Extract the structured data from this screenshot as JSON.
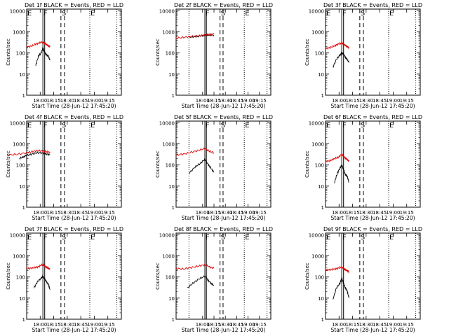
{
  "figure": {
    "ylabel": "Counts/sec",
    "xlabel": "Start Time (28-Jun-12 17:45:20)",
    "y_tick_labels": [
      "1",
      "10",
      "100",
      "1000",
      "10000"
    ],
    "x_tick_labels": [
      "18:00",
      "18:15",
      "18:30",
      "18:45",
      "19:00",
      "19:15"
    ]
  },
  "chart_data": [
    {
      "type": "line",
      "title": "Det 1f BLACK = Events, RED = LLD",
      "xlabel": "Start Time (28-Jun-12 17:45:20)",
      "ylabel": "Counts/sec",
      "y_scale": "log",
      "ylim": [
        1,
        12000
      ],
      "x_range_min": [
        0,
        105
      ],
      "event_lines": [
        {
          "label": "E",
          "t": 0,
          "style": "dotted"
        },
        {
          "label": "F",
          "t": 18,
          "style": "solid"
        },
        {
          "label": "",
          "t": 20,
          "style": "solid"
        },
        {
          "label": "S",
          "t": 38,
          "style": "dashed"
        },
        {
          "label": "",
          "t": 42,
          "style": "dashed"
        },
        {
          "label": "E",
          "t": 70,
          "style": "dotted"
        },
        {
          "label": "",
          "t": 100,
          "style": "dotted"
        }
      ],
      "series": [
        {
          "name": "Events",
          "color": "#000000",
          "x": [
            10,
            13,
            16,
            18,
            20,
            22,
            24,
            26
          ],
          "y": [
            25,
            70,
            100,
            170,
            110,
            80,
            70,
            45
          ]
        },
        {
          "name": "LLD",
          "color": "#dd0000",
          "x": [
            0,
            5,
            10,
            14,
            18,
            20,
            22,
            24,
            26
          ],
          "y": [
            190,
            210,
            260,
            300,
            330,
            290,
            250,
            220,
            190
          ]
        }
      ]
    },
    {
      "type": "line",
      "title": "Det 2f BLACK = Events, RED = LLD",
      "xlabel": "Start Time (28-Jun-12 17:45:20)",
      "ylabel": "Counts/sec",
      "y_scale": "log",
      "ylim": [
        1,
        12000
      ],
      "x_range_min": [
        -20,
        105
      ],
      "event_lines": [
        {
          "label": "",
          "t": -3,
          "style": "dotted"
        },
        {
          "label": "F",
          "t": 18,
          "style": "solid"
        },
        {
          "label": "",
          "t": 20,
          "style": "solid"
        },
        {
          "label": "S",
          "t": 38,
          "style": "dashed"
        },
        {
          "label": "",
          "t": 42,
          "style": "dashed"
        },
        {
          "label": "E",
          "t": 70,
          "style": "dotted"
        },
        {
          "label": "",
          "t": 100,
          "style": "dotted"
        }
      ],
      "series": [
        {
          "name": "Events",
          "color": "#000000",
          "x": [
            -3,
            5,
            12,
            18,
            24,
            30
          ],
          "y": [
            550,
            600,
            640,
            700,
            720,
            700
          ]
        },
        {
          "name": "LLD",
          "color": "#dd0000",
          "x": [
            -20,
            -10,
            0,
            10,
            18,
            24,
            30
          ],
          "y": [
            500,
            550,
            600,
            650,
            700,
            750,
            780
          ]
        }
      ]
    },
    {
      "type": "line",
      "title": "Det 3f BLACK = Events, RED = LLD",
      "xlabel": "Start Time (28-Jun-12 17:45:20)",
      "ylabel": "Counts/sec",
      "y_scale": "log",
      "ylim": [
        1,
        12000
      ],
      "x_range_min": [
        0,
        105
      ],
      "event_lines": [
        {
          "label": "E",
          "t": 0,
          "style": "dotted"
        },
        {
          "label": "F",
          "t": 18,
          "style": "solid"
        },
        {
          "label": "",
          "t": 20,
          "style": "solid"
        },
        {
          "label": "S",
          "t": 38,
          "style": "dashed"
        },
        {
          "label": "",
          "t": 42,
          "style": "dashed"
        },
        {
          "label": "E",
          "t": 70,
          "style": "dotted"
        },
        {
          "label": "",
          "t": 100,
          "style": "dotted"
        }
      ],
      "series": [
        {
          "name": "Events",
          "color": "#000000",
          "x": [
            8,
            12,
            16,
            18,
            20,
            22,
            24,
            26
          ],
          "y": [
            20,
            50,
            80,
            100,
            90,
            60,
            50,
            35
          ]
        },
        {
          "name": "LLD",
          "color": "#dd0000",
          "x": [
            0,
            5,
            10,
            14,
            18,
            20,
            22,
            24,
            26
          ],
          "y": [
            160,
            180,
            220,
            260,
            300,
            260,
            230,
            200,
            180
          ]
        }
      ]
    },
    {
      "type": "line",
      "title": "Det 4f BLACK = Events, RED = LLD",
      "xlabel": "Start Time (28-Jun-12 17:45:20)",
      "ylabel": "Counts/sec",
      "y_scale": "log",
      "ylim": [
        1,
        12000
      ],
      "x_range_min": [
        0,
        105
      ],
      "event_lines": [
        {
          "label": "E",
          "t": 0,
          "style": "dotted"
        },
        {
          "label": "F",
          "t": 18,
          "style": "solid"
        },
        {
          "label": "",
          "t": 20,
          "style": "solid"
        },
        {
          "label": "S",
          "t": 38,
          "style": "dashed"
        },
        {
          "label": "",
          "t": 42,
          "style": "dashed"
        },
        {
          "label": "E",
          "t": 70,
          "style": "dotted"
        },
        {
          "label": "",
          "t": 100,
          "style": "dotted"
        }
      ],
      "series": [
        {
          "name": "Events",
          "color": "#000000",
          "x": [
            -8,
            -4,
            0,
            6,
            12,
            18,
            22,
            26
          ],
          "y": [
            200,
            240,
            280,
            330,
            380,
            370,
            330,
            300
          ]
        },
        {
          "name": "LLD",
          "color": "#dd0000",
          "x": [
            -20,
            -10,
            0,
            6,
            12,
            18,
            22,
            26
          ],
          "y": [
            300,
            320,
            380,
            430,
            480,
            460,
            420,
            400
          ]
        }
      ]
    },
    {
      "type": "line",
      "title": "Det 5f BLACK = Events, RED = LLD",
      "xlabel": "Start Time (28-Jun-12 17:45:20)",
      "ylabel": "Counts/sec",
      "y_scale": "log",
      "ylim": [
        1,
        12000
      ],
      "x_range_min": [
        -20,
        105
      ],
      "event_lines": [
        {
          "label": "",
          "t": -3,
          "style": "dotted"
        },
        {
          "label": "F",
          "t": 18,
          "style": "solid"
        },
        {
          "label": "",
          "t": 20,
          "style": "solid"
        },
        {
          "label": "S",
          "t": 38,
          "style": "dashed"
        },
        {
          "label": "",
          "t": 42,
          "style": "dashed"
        },
        {
          "label": "E",
          "t": 70,
          "style": "dotted"
        },
        {
          "label": "",
          "t": 100,
          "style": "dotted"
        }
      ],
      "series": [
        {
          "name": "Events",
          "color": "#000000",
          "x": [
            -3,
            5,
            12,
            18,
            22,
            26,
            30
          ],
          "y": [
            40,
            80,
            120,
            190,
            110,
            70,
            45
          ]
        },
        {
          "name": "LLD",
          "color": "#dd0000",
          "x": [
            -20,
            -10,
            0,
            10,
            18,
            24,
            30
          ],
          "y": [
            300,
            330,
            400,
            500,
            600,
            450,
            380
          ]
        }
      ]
    },
    {
      "type": "line",
      "title": "Det 6f BLACK = Events, RED = LLD",
      "xlabel": "Start Time (28-Jun-12 17:45:20)",
      "ylabel": "Counts/sec",
      "y_scale": "log",
      "ylim": [
        1,
        12000
      ],
      "x_range_min": [
        0,
        105
      ],
      "event_lines": [
        {
          "label": "E",
          "t": 0,
          "style": "dotted"
        },
        {
          "label": "F",
          "t": 18,
          "style": "solid"
        },
        {
          "label": "",
          "t": 20,
          "style": "solid"
        },
        {
          "label": "S",
          "t": 38,
          "style": "dashed"
        },
        {
          "label": "",
          "t": 42,
          "style": "dashed"
        },
        {
          "label": "E",
          "t": 70,
          "style": "dotted"
        },
        {
          "label": "",
          "t": 100,
          "style": "dotted"
        }
      ],
      "series": [
        {
          "name": "Events",
          "color": "#000000",
          "x": [
            10,
            13,
            16,
            18,
            20,
            22,
            24,
            26
          ],
          "y": [
            15,
            40,
            70,
            100,
            60,
            35,
            30,
            15
          ]
        },
        {
          "name": "LLD",
          "color": "#dd0000",
          "x": [
            0,
            5,
            10,
            14,
            18,
            20,
            22,
            24,
            26
          ],
          "y": [
            150,
            160,
            200,
            230,
            320,
            260,
            210,
            180,
            150
          ]
        }
      ]
    },
    {
      "type": "line",
      "title": "Det 7f BLACK = Events, RED = LLD",
      "xlabel": "Start Time (28-Jun-12 17:45:20)",
      "ylabel": "Counts/sec",
      "y_scale": "log",
      "ylim": [
        1,
        12000
      ],
      "x_range_min": [
        0,
        105
      ],
      "event_lines": [
        {
          "label": "E",
          "t": 0,
          "style": "dotted"
        },
        {
          "label": "F",
          "t": 18,
          "style": "solid"
        },
        {
          "label": "",
          "t": 20,
          "style": "solid"
        },
        {
          "label": "S",
          "t": 38,
          "style": "dashed"
        },
        {
          "label": "",
          "t": 42,
          "style": "dashed"
        },
        {
          "label": "E",
          "t": 70,
          "style": "dotted"
        },
        {
          "label": "",
          "t": 100,
          "style": "dotted"
        }
      ],
      "series": [
        {
          "name": "Events",
          "color": "#000000",
          "x": [
            8,
            12,
            16,
            18,
            20,
            22,
            24,
            26
          ],
          "y": [
            30,
            60,
            85,
            110,
            80,
            60,
            45,
            25
          ]
        },
        {
          "name": "LLD",
          "color": "#dd0000",
          "x": [
            0,
            5,
            10,
            14,
            18,
            20,
            22,
            24,
            26
          ],
          "y": [
            250,
            260,
            280,
            320,
            400,
            330,
            290,
            260,
            230
          ]
        }
      ]
    },
    {
      "type": "line",
      "title": "Det 8f BLACK = Events, RED = LLD",
      "xlabel": "Start Time (28-Jun-12 17:45:20)",
      "ylabel": "Counts/sec",
      "y_scale": "log",
      "ylim": [
        1,
        12000
      ],
      "x_range_min": [
        -20,
        105
      ],
      "event_lines": [
        {
          "label": "",
          "t": -3,
          "style": "dotted"
        },
        {
          "label": "F",
          "t": 18,
          "style": "solid"
        },
        {
          "label": "",
          "t": 20,
          "style": "solid"
        },
        {
          "label": "S",
          "t": 38,
          "style": "dashed"
        },
        {
          "label": "",
          "t": 42,
          "style": "dashed"
        },
        {
          "label": "E",
          "t": 70,
          "style": "dotted"
        },
        {
          "label": "",
          "t": 100,
          "style": "dotted"
        }
      ],
      "series": [
        {
          "name": "Events",
          "color": "#000000",
          "x": [
            -5,
            2,
            10,
            18,
            22,
            26,
            30
          ],
          "y": [
            30,
            50,
            80,
            110,
            70,
            50,
            40
          ]
        },
        {
          "name": "LLD",
          "color": "#dd0000",
          "x": [
            -20,
            -10,
            0,
            10,
            18,
            24,
            30
          ],
          "y": [
            250,
            240,
            280,
            330,
            380,
            300,
            260
          ]
        }
      ]
    },
    {
      "type": "line",
      "title": "Det 9f BLACK = Events, RED = LLD",
      "xlabel": "Start Time (28-Jun-12 17:45:20)",
      "ylabel": "Counts/sec",
      "y_scale": "log",
      "ylim": [
        1,
        12000
      ],
      "x_range_min": [
        0,
        105
      ],
      "event_lines": [
        {
          "label": "E",
          "t": 0,
          "style": "dotted"
        },
        {
          "label": "F",
          "t": 18,
          "style": "solid"
        },
        {
          "label": "",
          "t": 20,
          "style": "solid"
        },
        {
          "label": "S",
          "t": 38,
          "style": "dashed"
        },
        {
          "label": "",
          "t": 42,
          "style": "dashed"
        },
        {
          "label": "E",
          "t": 70,
          "style": "dotted"
        },
        {
          "label": "",
          "t": 100,
          "style": "dotted"
        }
      ],
      "series": [
        {
          "name": "Events",
          "color": "#000000",
          "x": [
            8,
            12,
            16,
            18,
            20,
            22,
            24,
            26
          ],
          "y": [
            8,
            30,
            50,
            90,
            50,
            30,
            22,
            10
          ]
        },
        {
          "name": "LLD",
          "color": "#dd0000",
          "x": [
            0,
            5,
            10,
            14,
            18,
            20,
            22,
            24,
            26
          ],
          "y": [
            210,
            220,
            240,
            260,
            300,
            250,
            220,
            200,
            180
          ]
        }
      ]
    }
  ]
}
